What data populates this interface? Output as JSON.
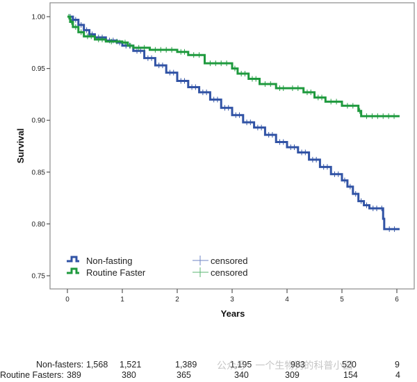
{
  "chart_data": {
    "type": "line",
    "subtype": "kaplan-meier-step",
    "title": "",
    "xlabel": "Years",
    "ylabel": "Survival",
    "xlim": [
      0,
      6
    ],
    "ylim": [
      0.75,
      1.0
    ],
    "xticks": [
      "0",
      "1",
      "2",
      "3",
      "4",
      "5",
      "6"
    ],
    "yticks": [
      "0.75",
      "0.80",
      "0.85",
      "0.90",
      "0.95",
      "1.00"
    ],
    "grid": false,
    "legend_position": "bottom-left",
    "series": [
      {
        "name": "Non-fasting",
        "censored_label": "censored",
        "color": "#3153a5",
        "x": [
          0,
          0.1,
          0.2,
          0.3,
          0.4,
          0.5,
          0.7,
          0.9,
          1.0,
          1.2,
          1.4,
          1.6,
          1.8,
          2.0,
          2.2,
          2.4,
          2.6,
          2.8,
          3.0,
          3.2,
          3.4,
          3.6,
          3.8,
          4.0,
          4.2,
          4.4,
          4.6,
          4.8,
          5.0,
          5.1,
          5.2,
          5.3,
          5.4,
          5.5,
          5.7,
          5.75,
          5.77,
          6.05
        ],
        "y": [
          1.0,
          0.997,
          0.992,
          0.987,
          0.983,
          0.98,
          0.977,
          0.975,
          0.972,
          0.967,
          0.96,
          0.953,
          0.946,
          0.938,
          0.932,
          0.927,
          0.92,
          0.912,
          0.905,
          0.898,
          0.893,
          0.886,
          0.879,
          0.874,
          0.869,
          0.862,
          0.855,
          0.848,
          0.842,
          0.836,
          0.829,
          0.822,
          0.818,
          0.815,
          0.815,
          0.805,
          0.795,
          0.795
        ]
      },
      {
        "name": "Routine Faster",
        "censored_label": "censored",
        "color": "#1f9a3e",
        "x": [
          0,
          0.05,
          0.1,
          0.2,
          0.3,
          0.5,
          0.7,
          1.0,
          1.1,
          1.2,
          1.5,
          2.0,
          2.2,
          2.5,
          3.0,
          3.1,
          3.3,
          3.5,
          3.8,
          4.0,
          4.3,
          4.5,
          4.7,
          5.0,
          5.3,
          5.35,
          6.05
        ],
        "y": [
          1.0,
          0.995,
          0.99,
          0.985,
          0.981,
          0.978,
          0.976,
          0.975,
          0.972,
          0.97,
          0.968,
          0.966,
          0.963,
          0.955,
          0.95,
          0.945,
          0.94,
          0.935,
          0.931,
          0.931,
          0.927,
          0.922,
          0.918,
          0.914,
          0.909,
          0.904,
          0.904
        ]
      }
    ],
    "risk_table": {
      "rows": [
        {
          "label": "Non-fasters:",
          "values": [
            "1,568",
            "1,521",
            "1,389",
            "1,195",
            "983",
            "520",
            "9"
          ]
        },
        {
          "label": "Routine Fasters:",
          "values": [
            "389",
            "380",
            "365",
            "340",
            "309",
            "154",
            "4"
          ]
        }
      ]
    }
  },
  "watermark": "公众号 · 一个生物狗的科普小园"
}
